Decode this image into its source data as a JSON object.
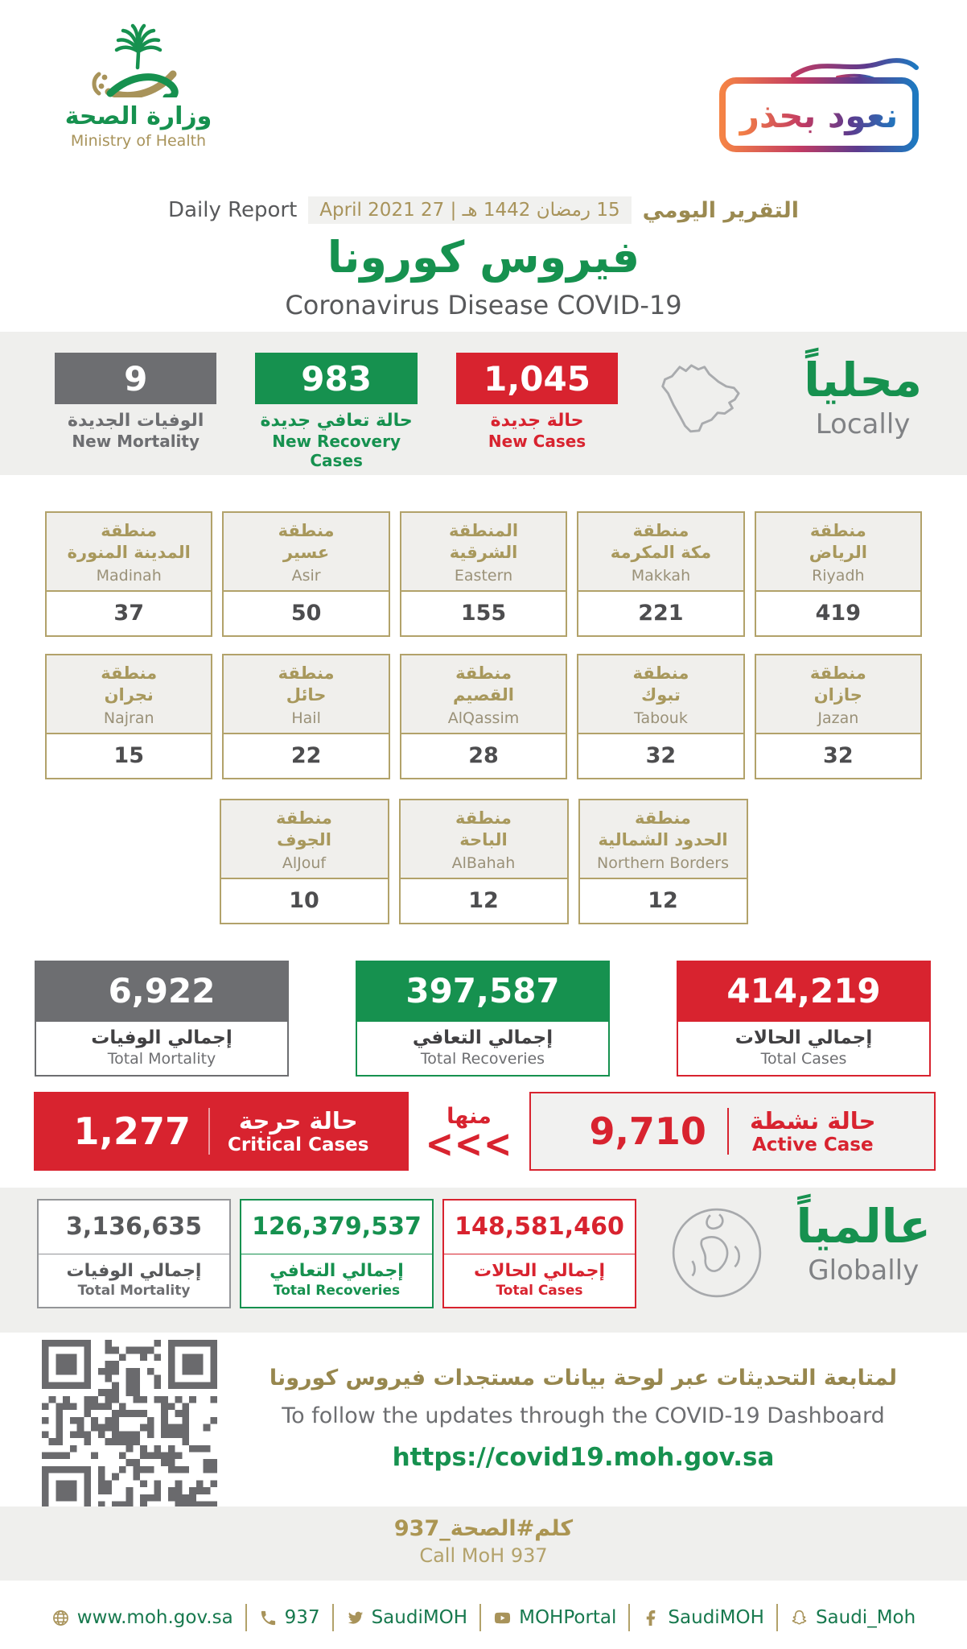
{
  "logo": {
    "name_ar": "وزارة الصحة",
    "name_en": "Ministry of Health"
  },
  "badge": {
    "text": "نعود بحذر"
  },
  "report": {
    "label_en": "Daily Report",
    "label_ar": "التقرير اليومي",
    "date_chip": "15 رمضان 1442 هـ | 27 April 2021"
  },
  "title_ar": "فيروس كورونا",
  "title_en": "Coronavirus Disease COVID-19",
  "locally": {
    "heading_ar": "محلياً",
    "heading_en": "Locally",
    "new_mortality": {
      "value": "9",
      "label_ar": "الوفيات الجديدة",
      "label_en": "New Mortality"
    },
    "new_recoveries": {
      "value": "983",
      "label_ar": "حالة تعافي جديدة",
      "label_en": "New Recovery Cases"
    },
    "new_cases": {
      "value": "1,045",
      "label_ar": "حالة جديدة",
      "label_en": "New Cases"
    }
  },
  "regions": {
    "row1": [
      {
        "ar1": "منطقة",
        "ar2": "المدينة المنورة",
        "en": "Madinah",
        "value": "37"
      },
      {
        "ar1": "منطقة",
        "ar2": "عسير",
        "en": "Asir",
        "value": "50"
      },
      {
        "ar1": "المنطقة",
        "ar2": "الشرقية",
        "en": "Eastern",
        "value": "155"
      },
      {
        "ar1": "منطقة",
        "ar2": "مكة المكرمة",
        "en": "Makkah",
        "value": "221"
      },
      {
        "ar1": "منطقة",
        "ar2": "الرياض",
        "en": "Riyadh",
        "value": "419"
      }
    ],
    "row2": [
      {
        "ar1": "منطقة",
        "ar2": "نجران",
        "en": "Najran",
        "value": "15"
      },
      {
        "ar1": "منطقة",
        "ar2": "حائل",
        "en": "Hail",
        "value": "22"
      },
      {
        "ar1": "منطقة",
        "ar2": "القصيم",
        "en": "AlQassim",
        "value": "28"
      },
      {
        "ar1": "منطقة",
        "ar2": "تبوك",
        "en": "Tabouk",
        "value": "32"
      },
      {
        "ar1": "منطقة",
        "ar2": "جازان",
        "en": "Jazan",
        "value": "32"
      }
    ],
    "row3": [
      {
        "ar1": "منطقة",
        "ar2": "الجوف",
        "en": "AlJouf",
        "value": "10"
      },
      {
        "ar1": "منطقة",
        "ar2": "الباحة",
        "en": "AlBahah",
        "value": "12"
      },
      {
        "ar1": "منطقة",
        "ar2": "الحدود الشمالية",
        "en": "Northern Borders",
        "value": "12"
      }
    ]
  },
  "totals": {
    "mortality": {
      "value": "6,922",
      "label_ar": "إجمالي الوفيات",
      "label_en": "Total Mortality"
    },
    "recoveries": {
      "value": "397,587",
      "label_ar": "إجمالي التعافي",
      "label_en": "Total Recoveries"
    },
    "cases": {
      "value": "414,219",
      "label_ar": "إجمالي الحالات",
      "label_en": "Total Cases"
    }
  },
  "critical_active": {
    "critical": {
      "value": "1,277",
      "label_ar": "حالة حرجة",
      "label_en": "Critical Cases"
    },
    "of_which": "منها",
    "chevrons": "<<<",
    "active": {
      "value": "9,710",
      "label_ar": "حالة نشطة",
      "label_en": "Active Case"
    }
  },
  "globally": {
    "heading_ar": "عالمياً",
    "heading_en": "Globally",
    "mortality": {
      "value": "3,136,635",
      "label_ar": "إجمالي الوفيات",
      "label_en": "Total Mortality"
    },
    "recoveries": {
      "value": "126,379,537",
      "label_ar": "إجمالي التعافي",
      "label_en": "Total Recoveries"
    },
    "cases": {
      "value": "148,581,460",
      "label_ar": "إجمالي الحالات",
      "label_en": "Total Cases"
    }
  },
  "dashboard": {
    "text_ar": "لمتابعة التحديثات عبر لوحة بيانات مستجدات فيروس كورونا",
    "text_en": "To follow the updates through the COVID-19 Dashboard",
    "url": "https://covid19.moh.gov.sa"
  },
  "call": {
    "text_ar": "كلم#الصحة_937",
    "text_en": "Call MoH 937"
  },
  "footer": {
    "items": [
      {
        "icon": "globe-icon",
        "label": "www.moh.gov.sa"
      },
      {
        "icon": "phone-icon",
        "label": "937"
      },
      {
        "icon": "twitter-icon",
        "label": "SaudiMOH"
      },
      {
        "icon": "youtube-icon",
        "label": "MOHPortal"
      },
      {
        "icon": "facebook-icon",
        "label": "SaudiMOH"
      },
      {
        "icon": "snapchat-icon",
        "label": "Saudi_Moh"
      }
    ]
  },
  "colors": {
    "green": "#16914f",
    "red": "#d8232f",
    "gray": "#6d6e71",
    "gold": "#a8935a"
  }
}
